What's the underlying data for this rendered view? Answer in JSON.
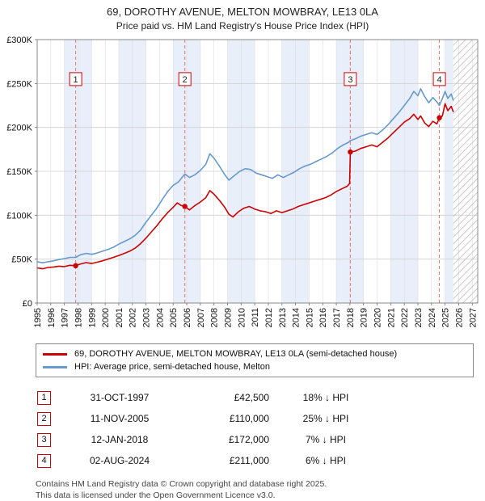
{
  "title": "69, DOROTHY AVENUE, MELTON MOWBRAY, LE13 0LA",
  "subtitle": "Price paid vs. HM Land Registry's House Price Index (HPI)",
  "legend": [
    {
      "label": "69, DOROTHY AVENUE, MELTON MOWBRAY, LE13 0LA (semi-detached house)",
      "color": "#cc0000"
    },
    {
      "label": "HPI: Average price, semi-detached house, Melton",
      "color": "#6699cc"
    }
  ],
  "transactions": [
    {
      "num": "1",
      "date": "31-OCT-1997",
      "price": "£42,500",
      "hpi": "18% ↓ HPI"
    },
    {
      "num": "2",
      "date": "11-NOV-2005",
      "price": "£110,000",
      "hpi": "25% ↓ HPI"
    },
    {
      "num": "3",
      "date": "12-JAN-2018",
      "price": "£172,000",
      "hpi": "7% ↓ HPI"
    },
    {
      "num": "4",
      "date": "02-AUG-2024",
      "price": "£211,000",
      "hpi": "6% ↓ HPI"
    }
  ],
  "footer": {
    "line1": "Contains HM Land Registry data © Crown copyright and database right 2025.",
    "line2": "This data is licensed under the Open Government Licence v3.0."
  },
  "chart_data": {
    "type": "line",
    "title": "69, DOROTHY AVENUE, MELTON MOWBRAY, LE13 0LA — Price paid vs. HPI",
    "unit": "GBP thousands",
    "x_range": [
      1995,
      2027.4
    ],
    "y_range": [
      0,
      300
    ],
    "future_start": 2025.6,
    "marker_y": 255,
    "grid": true,
    "legend_position": "bottom",
    "colors": {
      "property": "#cc0000",
      "hpi": "#6699cc",
      "band": "#e9effa",
      "sale_line": "#e57373",
      "grid": "#cfcfcf",
      "border": "#888888"
    },
    "y_ticks": [
      {
        "value": 0,
        "label": "£0"
      },
      {
        "value": 50,
        "label": "£50K"
      },
      {
        "value": 100,
        "label": "£100K"
      },
      {
        "value": 150,
        "label": "£150K"
      },
      {
        "value": 200,
        "label": "£200K"
      },
      {
        "value": 250,
        "label": "£250K"
      },
      {
        "value": 300,
        "label": "£300K"
      }
    ],
    "x_labels": [
      "1995",
      "1996",
      "1997",
      "1998",
      "1999",
      "2000",
      "2001",
      "2002",
      "2003",
      "2004",
      "2005",
      "2006",
      "2007",
      "2008",
      "2009",
      "2010",
      "2011",
      "2012",
      "2013",
      "2014",
      "2015",
      "2016",
      "2017",
      "2018",
      "2019",
      "2020",
      "2021",
      "2022",
      "2023",
      "2024",
      "2025",
      "2026",
      "2027"
    ],
    "sales": [
      {
        "label": "1",
        "x": 1997.83,
        "y": 42.5,
        "date": "31-OCT-1997",
        "price": 42500
      },
      {
        "label": "2",
        "x": 2005.86,
        "y": 110,
        "date": "11-NOV-2005",
        "price": 110000
      },
      {
        "label": "3",
        "x": 2018.03,
        "y": 172,
        "date": "12-JAN-2018",
        "price": 172000
      },
      {
        "label": "4",
        "x": 2024.58,
        "y": 211,
        "date": "02-AUG-2024",
        "price": 211000
      }
    ],
    "series": [
      {
        "name": "HPI: Average price, semi-detached house, Melton",
        "id": "hpi-line",
        "color": "#6699cc",
        "points": [
          [
            1995,
            47
          ],
          [
            1995.4,
            45.8
          ],
          [
            1995.8,
            47
          ],
          [
            1996.2,
            48
          ],
          [
            1996.6,
            49.5
          ],
          [
            1997,
            50.5
          ],
          [
            1997.4,
            52
          ],
          [
            1997.83,
            52
          ],
          [
            1998.2,
            55
          ],
          [
            1998.6,
            56.5
          ],
          [
            1999,
            55.5
          ],
          [
            1999.4,
            57
          ],
          [
            1999.8,
            59
          ],
          [
            2000.2,
            61
          ],
          [
            2000.6,
            63.5
          ],
          [
            2001,
            67
          ],
          [
            2001.4,
            70
          ],
          [
            2001.8,
            73
          ],
          [
            2002.2,
            77
          ],
          [
            2002.6,
            83
          ],
          [
            2003,
            92
          ],
          [
            2003.4,
            100
          ],
          [
            2003.8,
            108
          ],
          [
            2004.2,
            118
          ],
          [
            2004.6,
            127
          ],
          [
            2005,
            134
          ],
          [
            2005.4,
            138
          ],
          [
            2005.86,
            147
          ],
          [
            2006.2,
            143
          ],
          [
            2006.6,
            146
          ],
          [
            2007,
            151
          ],
          [
            2007.4,
            158
          ],
          [
            2007.7,
            170
          ],
          [
            2008,
            165
          ],
          [
            2008.4,
            156
          ],
          [
            2008.8,
            146
          ],
          [
            2009.1,
            140
          ],
          [
            2009.5,
            145
          ],
          [
            2009.9,
            150
          ],
          [
            2010.3,
            153
          ],
          [
            2010.7,
            152
          ],
          [
            2011.1,
            148
          ],
          [
            2011.5,
            146
          ],
          [
            2011.9,
            144
          ],
          [
            2012.3,
            142
          ],
          [
            2012.7,
            146
          ],
          [
            2013.1,
            143
          ],
          [
            2013.5,
            146
          ],
          [
            2013.9,
            149
          ],
          [
            2014.3,
            153
          ],
          [
            2014.7,
            156
          ],
          [
            2015.1,
            158
          ],
          [
            2015.5,
            161
          ],
          [
            2015.9,
            164
          ],
          [
            2016.3,
            167
          ],
          [
            2016.7,
            171
          ],
          [
            2017.1,
            176
          ],
          [
            2017.5,
            180
          ],
          [
            2017.9,
            183
          ],
          [
            2018.03,
            185
          ],
          [
            2018.4,
            187
          ],
          [
            2018.8,
            190
          ],
          [
            2019.2,
            192
          ],
          [
            2019.6,
            194
          ],
          [
            2020,
            192
          ],
          [
            2020.4,
            197
          ],
          [
            2020.8,
            203
          ],
          [
            2021.2,
            210
          ],
          [
            2021.6,
            217
          ],
          [
            2022,
            225
          ],
          [
            2022.4,
            233
          ],
          [
            2022.7,
            241
          ],
          [
            2023,
            236
          ],
          [
            2023.2,
            244
          ],
          [
            2023.5,
            235
          ],
          [
            2023.8,
            228
          ],
          [
            2024.1,
            234
          ],
          [
            2024.4,
            229
          ],
          [
            2024.58,
            225
          ],
          [
            2024.8,
            233
          ],
          [
            2025,
            241
          ],
          [
            2025.2,
            233
          ],
          [
            2025.45,
            238
          ],
          [
            2025.6,
            231
          ]
        ]
      },
      {
        "name": "69, DOROTHY AVENUE, MELTON MOWBRAY, LE13 0LA (semi-detached house)",
        "id": "property-line",
        "color": "#cc0000",
        "points": [
          [
            1995,
            40
          ],
          [
            1995.4,
            39
          ],
          [
            1995.8,
            40.5
          ],
          [
            1996.2,
            41
          ],
          [
            1996.6,
            42
          ],
          [
            1997,
            41.5
          ],
          [
            1997.4,
            43
          ],
          [
            1997.83,
            42.5
          ],
          [
            1998.2,
            44.5
          ],
          [
            1998.6,
            46
          ],
          [
            1999,
            45
          ],
          [
            1999.4,
            46.5
          ],
          [
            1999.8,
            48
          ],
          [
            2000.2,
            50
          ],
          [
            2000.6,
            52
          ],
          [
            2001,
            54
          ],
          [
            2001.4,
            56.5
          ],
          [
            2001.8,
            59
          ],
          [
            2002.2,
            62.5
          ],
          [
            2002.6,
            67.5
          ],
          [
            2003,
            74
          ],
          [
            2003.4,
            81
          ],
          [
            2003.8,
            88
          ],
          [
            2004.2,
            96
          ],
          [
            2004.6,
            103
          ],
          [
            2005,
            109
          ],
          [
            2005.3,
            114
          ],
          [
            2005.6,
            111
          ],
          [
            2005.86,
            110
          ],
          [
            2006.2,
            106
          ],
          [
            2006.6,
            111
          ],
          [
            2007,
            115
          ],
          [
            2007.4,
            120
          ],
          [
            2007.7,
            128
          ],
          [
            2008,
            124
          ],
          [
            2008.4,
            117
          ],
          [
            2008.8,
            109
          ],
          [
            2009.1,
            101
          ],
          [
            2009.4,
            98
          ],
          [
            2009.8,
            104
          ],
          [
            2010.2,
            108
          ],
          [
            2010.6,
            110
          ],
          [
            2011,
            107
          ],
          [
            2011.4,
            105
          ],
          [
            2011.8,
            104
          ],
          [
            2012.2,
            102
          ],
          [
            2012.6,
            105
          ],
          [
            2013,
            103
          ],
          [
            2013.4,
            105
          ],
          [
            2013.8,
            107
          ],
          [
            2014.2,
            110
          ],
          [
            2014.6,
            112
          ],
          [
            2015,
            114
          ],
          [
            2015.4,
            116
          ],
          [
            2015.8,
            118
          ],
          [
            2016.2,
            120
          ],
          [
            2016.6,
            123
          ],
          [
            2017,
            127
          ],
          [
            2017.4,
            130
          ],
          [
            2017.8,
            133
          ],
          [
            2017.98,
            136
          ],
          [
            2018.03,
            172
          ],
          [
            2018.4,
            173
          ],
          [
            2018.8,
            176
          ],
          [
            2019.2,
            178
          ],
          [
            2019.6,
            180
          ],
          [
            2020,
            178
          ],
          [
            2020.4,
            183
          ],
          [
            2020.8,
            188
          ],
          [
            2021.2,
            194
          ],
          [
            2021.6,
            200
          ],
          [
            2022,
            206
          ],
          [
            2022.4,
            210
          ],
          [
            2022.7,
            215
          ],
          [
            2023,
            209
          ],
          [
            2023.2,
            213
          ],
          [
            2023.5,
            205
          ],
          [
            2023.8,
            201
          ],
          [
            2024.1,
            207
          ],
          [
            2024.4,
            204
          ],
          [
            2024.58,
            211
          ],
          [
            2024.8,
            213
          ],
          [
            2025,
            227
          ],
          [
            2025.2,
            219
          ],
          [
            2025.45,
            224
          ],
          [
            2025.6,
            218
          ]
        ]
      }
    ]
  }
}
